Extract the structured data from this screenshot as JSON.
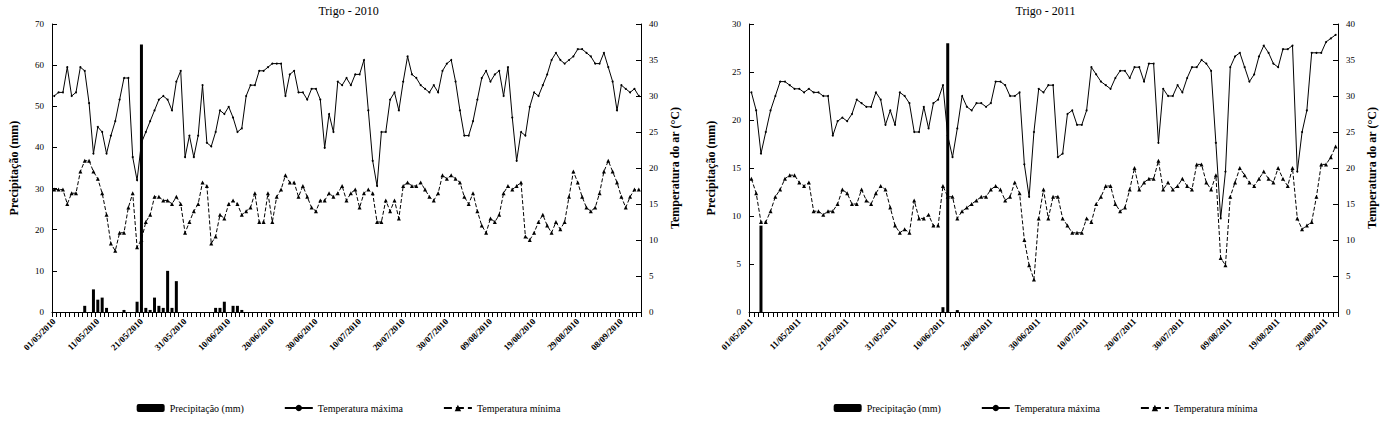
{
  "chart_data": [
    {
      "type": "combo",
      "title": "Trigo - 2010",
      "ylabel": "Precipitação (mm)",
      "y2label": "Temperatura do ar (°C)",
      "categories": [
        "01/05/2010",
        null,
        null,
        null,
        null,
        null,
        null,
        null,
        null,
        null,
        "11/05/2010",
        null,
        null,
        null,
        null,
        null,
        null,
        null,
        null,
        null,
        "21/05/2010",
        null,
        null,
        null,
        null,
        null,
        null,
        null,
        null,
        null,
        "31/05/2010",
        null,
        null,
        null,
        null,
        null,
        null,
        null,
        null,
        null,
        "10/06/2010",
        null,
        null,
        null,
        null,
        null,
        null,
        null,
        null,
        null,
        "20/06/2010",
        null,
        null,
        null,
        null,
        null,
        null,
        null,
        null,
        null,
        "30/06/2010",
        null,
        null,
        null,
        null,
        null,
        null,
        null,
        null,
        null,
        "10/07/2010",
        null,
        null,
        null,
        null,
        null,
        null,
        null,
        null,
        null,
        "20/07/2010",
        null,
        null,
        null,
        null,
        null,
        null,
        null,
        null,
        null,
        "30/07/2010",
        null,
        null,
        null,
        null,
        null,
        null,
        null,
        null,
        null,
        "09/08/2010",
        null,
        null,
        null,
        null,
        null,
        null,
        null,
        null,
        null,
        "19/08/2010",
        null,
        null,
        null,
        null,
        null,
        null,
        null,
        null,
        null,
        "29/08/2010",
        null,
        null,
        null,
        null,
        null,
        null,
        null,
        null,
        null,
        "08/09/2010",
        null,
        null,
        null,
        null
      ],
      "series": [
        {
          "name": "Precipitação (mm)",
          "type": "bar",
          "color": "#000000",
          "values": [
            0,
            0,
            0,
            0,
            0,
            0,
            0,
            1.5,
            0,
            5.5,
            3,
            3.5,
            1,
            0,
            0,
            0,
            0.5,
            0,
            0,
            2.5,
            65,
            1,
            0.5,
            3.5,
            1.5,
            1,
            10,
            1,
            7.5,
            0,
            0,
            0,
            0,
            0,
            0,
            0,
            0,
            1,
            1,
            2.5,
            0,
            1.5,
            1.5,
            0.5,
            0,
            0,
            0,
            0,
            0,
            0,
            0,
            0,
            0,
            0,
            0,
            0,
            0,
            0,
            0,
            0,
            0,
            0,
            0,
            0,
            0,
            0,
            0,
            0,
            0,
            0,
            0,
            0,
            0,
            0,
            0,
            0,
            0,
            0,
            0,
            0,
            0,
            0,
            0,
            0,
            0,
            0,
            0,
            0,
            0,
            0,
            0,
            0,
            0,
            0,
            0,
            0,
            0,
            0,
            0,
            0,
            0,
            0,
            0,
            0,
            0,
            0,
            0,
            0,
            0,
            0,
            0,
            0,
            0,
            0,
            0,
            0,
            0,
            0,
            0,
            0,
            0,
            0,
            0,
            0,
            0,
            0,
            0,
            0,
            0,
            0,
            0,
            0,
            0,
            0,
            0
          ]
        },
        {
          "name": "Temperatura máxima",
          "type": "line",
          "axis": "y2",
          "color": "#000000",
          "line_style": "solid",
          "marker": "circle",
          "values": [
            30,
            30.5,
            30.5,
            34,
            30,
            30.5,
            34,
            33.5,
            29,
            22,
            25.7,
            25,
            22,
            24.5,
            26.5,
            29.5,
            32.5,
            32.5,
            21.5,
            18.3,
            23.5,
            25,
            26.5,
            28,
            29.5,
            30,
            29.5,
            28,
            32,
            33.5,
            21.5,
            24.5,
            21.5,
            24.5,
            31.5,
            23.5,
            23,
            25,
            28,
            27.5,
            28.5,
            27,
            25,
            25.5,
            30,
            31.5,
            31.5,
            33.5,
            33.5,
            34,
            34.5,
            34.5,
            34.5,
            30,
            33,
            33.5,
            30.5,
            30.5,
            29.5,
            31,
            31,
            29.5,
            22.8,
            27.5,
            25,
            32,
            31.5,
            32.5,
            31.5,
            33,
            33,
            35,
            28,
            21,
            17.5,
            25,
            25,
            29.5,
            30.5,
            28,
            32,
            35.5,
            33,
            32.5,
            31.5,
            31,
            30.5,
            31.5,
            30.5,
            33.5,
            34.5,
            35,
            32,
            28,
            24.5,
            24.5,
            26.5,
            29.5,
            32.5,
            33.5,
            32,
            33,
            33.5,
            30,
            34,
            27,
            21,
            25,
            24.5,
            28.5,
            30.5,
            30,
            31.5,
            33,
            35,
            36,
            35,
            34.5,
            35,
            35.5,
            36.5,
            36.5,
            36,
            35.5,
            34.5,
            34.5,
            36,
            34,
            32,
            28,
            31.5,
            31,
            30.5,
            31,
            30
          ]
        },
        {
          "name": "Temperatura mínima",
          "type": "line",
          "axis": "y2",
          "color": "#000000",
          "line_style": "dashed",
          "marker": "triangle",
          "values": [
            17,
            17,
            17,
            15,
            16.5,
            16.5,
            19.5,
            21,
            21,
            19.5,
            18.5,
            16.5,
            13.5,
            9.5,
            8.5,
            11,
            11,
            14.5,
            16.5,
            9,
            10,
            12.5,
            13.5,
            16,
            16,
            15.5,
            15.5,
            15,
            16,
            15,
            11,
            12.5,
            14,
            15,
            18,
            17.5,
            9.5,
            10.5,
            13.5,
            13,
            15,
            15.5,
            15,
            13.5,
            14,
            14.5,
            16.5,
            12.5,
            12.5,
            16.5,
            12.5,
            16,
            17,
            19,
            18,
            18,
            16,
            17.5,
            16,
            14.5,
            14,
            15.5,
            15.5,
            16.5,
            16,
            16.5,
            17.5,
            15.5,
            16.5,
            17,
            14.5,
            16.5,
            17,
            16.5,
            12.5,
            12.5,
            15.5,
            14,
            15.5,
            13,
            17.5,
            18,
            17.5,
            17.5,
            18,
            17,
            16,
            15.5,
            16.5,
            19,
            18.5,
            19,
            18.5,
            18,
            16,
            15,
            16.5,
            14,
            12,
            11,
            13,
            12.5,
            13.5,
            16.5,
            17.5,
            17,
            17.5,
            18,
            10.5,
            10,
            11,
            12.5,
            13.5,
            12,
            11,
            12.5,
            11.5,
            12.5,
            16,
            19.5,
            18,
            16,
            14.5,
            14,
            14.5,
            16.5,
            19.5,
            21,
            19.5,
            18,
            16,
            14.5,
            16,
            17,
            17
          ]
        }
      ],
      "ylim": [
        0,
        70
      ],
      "yticks": [
        0,
        10,
        20,
        30,
        40,
        50,
        60,
        70
      ],
      "y2lim": [
        0,
        40
      ],
      "y2ticks": [
        0,
        5,
        10,
        15,
        20,
        25,
        30,
        35,
        40
      ],
      "grid": false,
      "legend": "bottom"
    },
    {
      "type": "combo",
      "title": "Trigo - 2011",
      "ylabel": "Precipitação (mm)",
      "y2label": "Temperatura do ar (°C)",
      "categories": [
        "01/05/2011",
        null,
        null,
        null,
        null,
        null,
        null,
        null,
        null,
        null,
        "11/05/2011",
        null,
        null,
        null,
        null,
        null,
        null,
        null,
        null,
        null,
        "21/05/2011",
        null,
        null,
        null,
        null,
        null,
        null,
        null,
        null,
        null,
        "31/05/2011",
        null,
        null,
        null,
        null,
        null,
        null,
        null,
        null,
        null,
        "10/06/2011",
        null,
        null,
        null,
        null,
        null,
        null,
        null,
        null,
        null,
        "20/06/2011",
        null,
        null,
        null,
        null,
        null,
        null,
        null,
        null,
        null,
        "30/06/2011",
        null,
        null,
        null,
        null,
        null,
        null,
        null,
        null,
        null,
        "10/07/2011",
        null,
        null,
        null,
        null,
        null,
        null,
        null,
        null,
        null,
        "20/07/2011",
        null,
        null,
        null,
        null,
        null,
        null,
        null,
        null,
        null,
        "30/07/2011",
        null,
        null,
        null,
        null,
        null,
        null,
        null,
        null,
        null,
        "09/08/2011",
        null,
        null,
        null,
        null,
        null,
        null,
        null,
        null,
        null,
        "19/08/2011",
        null,
        null,
        null,
        null,
        null,
        null,
        null,
        null,
        null,
        "29/08/2011",
        null,
        null
      ],
      "series": [
        {
          "name": "Precipitação (mm)",
          "type": "bar",
          "color": "#000000",
          "values": [
            0,
            0,
            9,
            0,
            0,
            0,
            0,
            0,
            0,
            0,
            0,
            0,
            0,
            0,
            0,
            0,
            0,
            0,
            0,
            0,
            0,
            0,
            0,
            0,
            0,
            0,
            0,
            0,
            0,
            0,
            0,
            0,
            0,
            0,
            0,
            0,
            0,
            0,
            0,
            0,
            0.5,
            28,
            0,
            0.2,
            0,
            0,
            0,
            0,
            0,
            0,
            0,
            0,
            0,
            0,
            0,
            0,
            0,
            0,
            0,
            0,
            0,
            0,
            0,
            0,
            0,
            0,
            0,
            0,
            0,
            0,
            0,
            0,
            0,
            0,
            0,
            0,
            0,
            0,
            0,
            0,
            0,
            0,
            0,
            0,
            0,
            0,
            0,
            0,
            0,
            0,
            0,
            0,
            0,
            0,
            0,
            0,
            0,
            0,
            0,
            0,
            0,
            0,
            0,
            0,
            0,
            0,
            0,
            0,
            0,
            0,
            0,
            0,
            0,
            0,
            0,
            0,
            0,
            0,
            0,
            0,
            0,
            0,
            0
          ]
        },
        {
          "name": "Temperatura máxima",
          "type": "line",
          "axis": "y2",
          "color": "#000000",
          "line_style": "solid",
          "marker": "circle",
          "values": [
            30.5,
            28,
            22,
            25,
            28,
            30,
            32,
            32,
            31.5,
            31,
            31,
            30.5,
            31,
            30.5,
            30.5,
            30,
            30,
            24.5,
            26.5,
            27,
            26.5,
            27.5,
            29.5,
            29,
            28.5,
            28.5,
            30.5,
            29.5,
            26,
            28,
            26,
            30.5,
            30,
            29,
            25,
            25,
            28.5,
            25.5,
            29,
            29.5,
            31.5,
            24.5,
            21.5,
            25.5,
            30,
            28.5,
            28,
            29,
            29,
            28.5,
            29,
            32,
            32,
            31.5,
            30,
            30,
            30.5,
            20.5,
            16,
            25,
            31,
            30.5,
            31.5,
            31.5,
            21.5,
            22,
            27.5,
            28,
            26,
            26,
            28,
            34,
            33,
            32,
            31.5,
            31,
            32.5,
            33.5,
            33.5,
            32.5,
            34,
            34,
            32,
            34.5,
            34.5,
            23.5,
            31,
            30,
            30,
            31.5,
            30.5,
            32.5,
            34,
            34,
            35,
            34.5,
            33.5,
            23.5,
            13,
            19.5,
            34,
            35.5,
            36,
            34,
            32,
            33,
            35.5,
            37,
            36,
            34.5,
            34,
            36.5,
            36.5,
            37,
            19.5,
            25,
            28,
            36,
            36,
            36,
            37.5,
            38,
            38.5
          ]
        },
        {
          "name": "Temperatura mínima",
          "type": "line",
          "axis": "y2",
          "color": "#000000",
          "line_style": "dashed",
          "marker": "triangle",
          "values": [
            18.5,
            16.5,
            12.5,
            12.5,
            14,
            16,
            17,
            18.5,
            19,
            19,
            18,
            17.5,
            18,
            14,
            14,
            13.5,
            14,
            14,
            15,
            17,
            16.5,
            15,
            15,
            17,
            15.5,
            15,
            16.5,
            17.5,
            17,
            14.5,
            12,
            11,
            11.5,
            11,
            15.5,
            13,
            13,
            13.5,
            12,
            12,
            17.5,
            16,
            16,
            13,
            14,
            14.5,
            15,
            15.5,
            16,
            16,
            17,
            17.5,
            17,
            15.5,
            16,
            18,
            16.5,
            10,
            6.5,
            4.5,
            13,
            17,
            13,
            16,
            16,
            13,
            12,
            11,
            11,
            11,
            13,
            12.5,
            15,
            16,
            17.5,
            17.5,
            15,
            14,
            14.5,
            17,
            20,
            17,
            18,
            18.5,
            18.5,
            21,
            17,
            18,
            17,
            17.5,
            18.5,
            17.5,
            17,
            20.5,
            20.5,
            18,
            17,
            19,
            7.5,
            6.5,
            16,
            18,
            20,
            19,
            18,
            17.5,
            18.5,
            19.5,
            18.5,
            18,
            20,
            18.5,
            17.5,
            20,
            13,
            11.5,
            12,
            12.5,
            16,
            20.5,
            20.5,
            21.5,
            23
          ]
        }
      ],
      "ylim": [
        0,
        30
      ],
      "yticks": [
        0,
        5,
        10,
        15,
        20,
        25,
        30
      ],
      "y2lim": [
        0,
        40
      ],
      "y2ticks": [
        0,
        5,
        10,
        15,
        20,
        25,
        30,
        35,
        40
      ],
      "grid": false,
      "legend": "bottom"
    }
  ]
}
